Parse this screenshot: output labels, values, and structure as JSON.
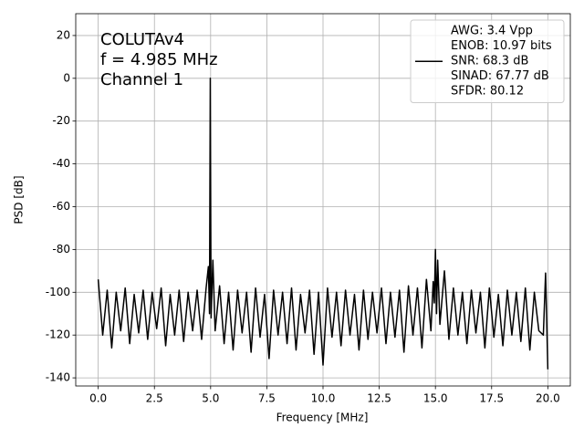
{
  "chart_data": {
    "type": "line",
    "xlabel": "Frequency [MHz]",
    "ylabel": "PSD [dB]",
    "annotation": [
      "COLUTAv4",
      "f = 4.985 MHz",
      "Channel 1"
    ],
    "xlim": [
      -1,
      21
    ],
    "ylim": [
      -143.8,
      30.2
    ],
    "xticks": [
      {
        "value": 0,
        "label": "0.0"
      },
      {
        "value": 2.5,
        "label": "2.5"
      },
      {
        "value": 5,
        "label": "5.0"
      },
      {
        "value": 7.5,
        "label": "7.5"
      },
      {
        "value": 10,
        "label": "10.0"
      },
      {
        "value": 12.5,
        "label": "12.5"
      },
      {
        "value": 15,
        "label": "15.0"
      },
      {
        "value": 17.5,
        "label": "17.5"
      },
      {
        "value": 20,
        "label": "20.0"
      }
    ],
    "yticks": [
      -140,
      -120,
      -100,
      -80,
      -60,
      -40,
      -20,
      0,
      20
    ],
    "grid": true,
    "legend": "upper right",
    "x": [
      0,
      0.2,
      0.4,
      0.6,
      0.8,
      1,
      1.2,
      1.4,
      1.6,
      1.8,
      2,
      2.2,
      2.4,
      2.6,
      2.8,
      3,
      3.2,
      3.4,
      3.6,
      3.8,
      4,
      4.2,
      4.4,
      4.6,
      4.8,
      4.9,
      4.95,
      4.985,
      5.02,
      5.1,
      5.2,
      5.4,
      5.6,
      5.8,
      6,
      6.2,
      6.4,
      6.6,
      6.8,
      7,
      7.2,
      7.4,
      7.6,
      7.8,
      8,
      8.2,
      8.4,
      8.6,
      8.8,
      9,
      9.2,
      9.4,
      9.6,
      9.8,
      10,
      10.2,
      10.4,
      10.6,
      10.8,
      11,
      11.2,
      11.4,
      11.6,
      11.8,
      12,
      12.2,
      12.4,
      12.6,
      12.8,
      13,
      13.2,
      13.4,
      13.6,
      13.8,
      14,
      14.2,
      14.4,
      14.6,
      14.8,
      14.9,
      14.95,
      15,
      15.05,
      15.1,
      15.2,
      15.4,
      15.6,
      15.8,
      16,
      16.2,
      16.4,
      16.6,
      16.8,
      17,
      17.2,
      17.4,
      17.6,
      17.8,
      18,
      18.2,
      18.4,
      18.6,
      18.8,
      19,
      19.2,
      19.4,
      19.6,
      19.8,
      19.9,
      20
    ],
    "series": [
      {
        "name": [
          "AWG: 3.4 Vpp",
          "ENOB: 10.97 bits",
          "SNR: 68.3 dB",
          "SINAD: 67.77 dB",
          "SFDR: 80.12"
        ],
        "color": "#000000",
        "values": [
          -94,
          -120,
          -99,
          -126,
          -100,
          -118,
          -98,
          -124,
          -101,
          -119,
          -99,
          -122,
          -100,
          -117,
          -98,
          -125,
          -101,
          -120,
          -99,
          -123,
          -100,
          -118,
          -99,
          -122,
          -98,
          -88,
          -110,
          0,
          -112,
          -85,
          -118,
          -97,
          -124,
          -100,
          -127,
          -99,
          -119,
          -100,
          -128,
          -98,
          -121,
          -101,
          -131,
          -99,
          -120,
          -100,
          -124,
          -98,
          -127,
          -101,
          -119,
          -99,
          -129,
          -100,
          -134,
          -98,
          -121,
          -100,
          -125,
          -99,
          -120,
          -101,
          -127,
          -99,
          -122,
          -100,
          -119,
          -98,
          -124,
          -100,
          -121,
          -99,
          -128,
          -97,
          -120,
          -98,
          -126,
          -94,
          -118,
          -95,
          -105,
          -80,
          -110,
          -85,
          -115,
          -90,
          -122,
          -98,
          -120,
          -100,
          -124,
          -99,
          -119,
          -100,
          -126,
          -98,
          -121,
          -101,
          -125,
          -99,
          -120,
          -100,
          -123,
          -98,
          -127,
          -100,
          -118,
          -120,
          -91,
          -136
        ]
      }
    ]
  }
}
